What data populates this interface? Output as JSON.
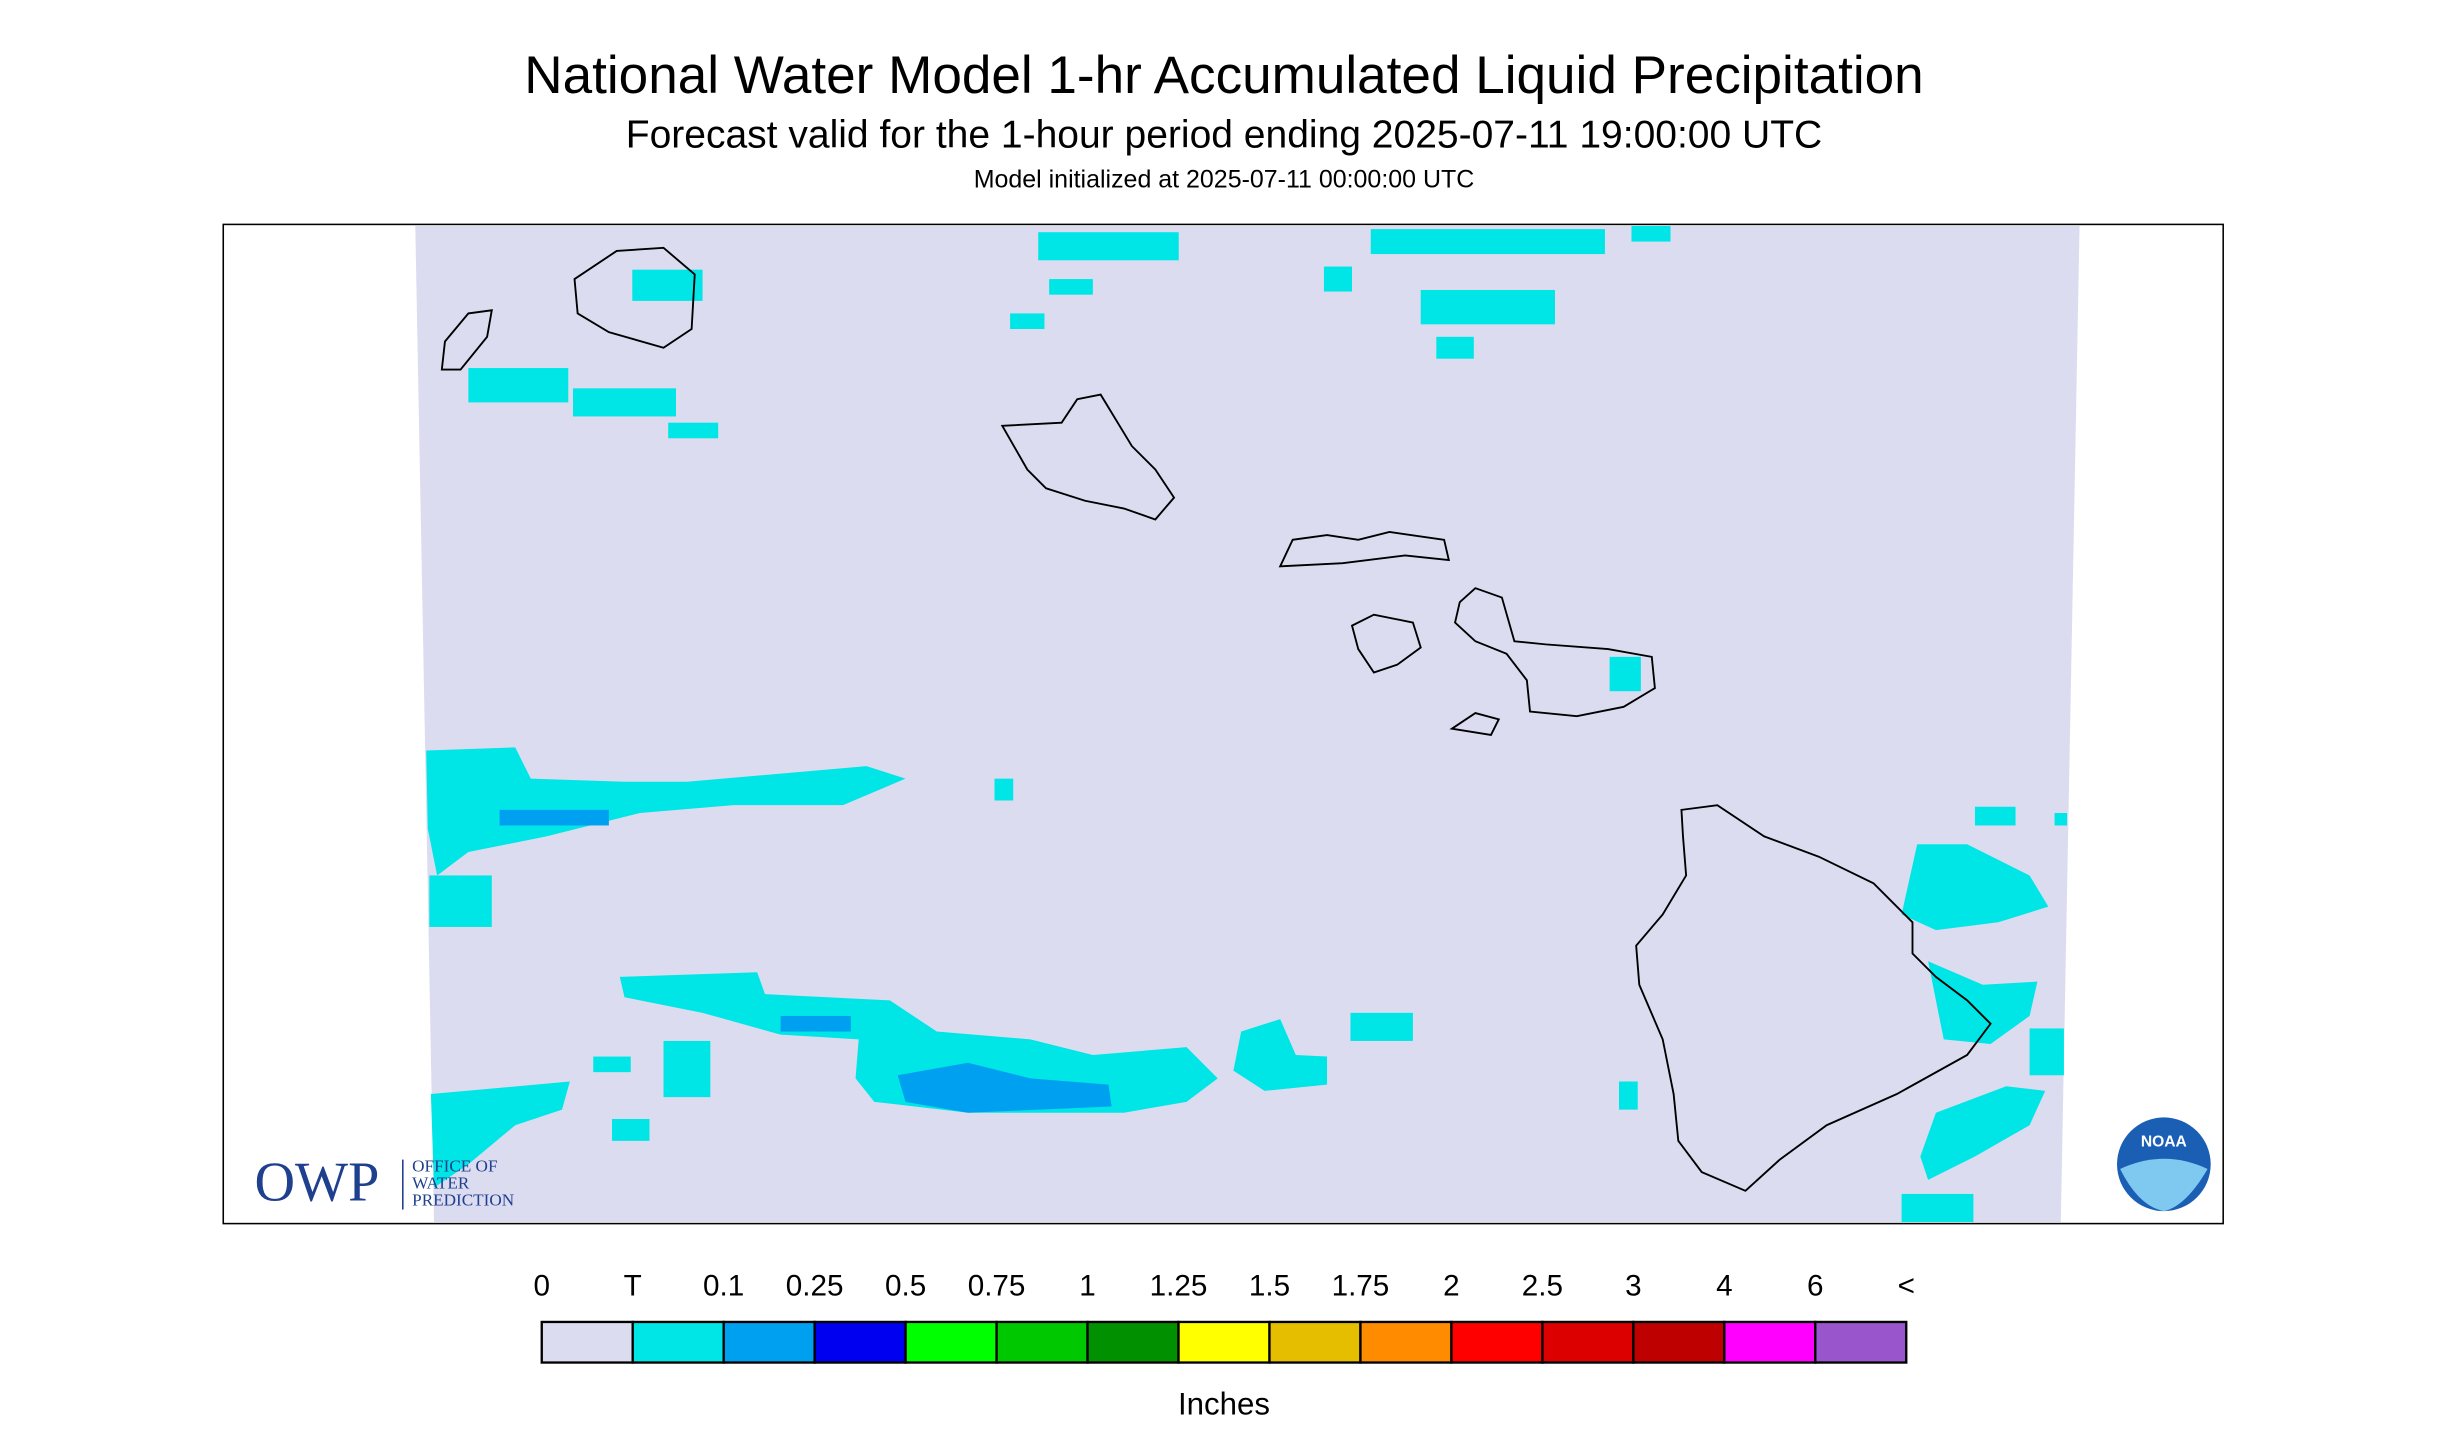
{
  "header": {
    "title": "National Water Model 1-hr Accumulated Liquid Precipitation",
    "subtitle": "Forecast valid for the 1-hour period ending 2025-07-11 19:00:00 UTC",
    "init": "Model initialized at 2025-07-11 00:00:00 UTC"
  },
  "logos": {
    "owp": "OWP",
    "owp_lines": [
      "OFFICE OF",
      "WATER",
      "PREDICTION"
    ],
    "noaa": "NOAA"
  },
  "legend": {
    "unit": "Inches",
    "labels": [
      "0",
      "T",
      "0.1",
      "0.25",
      "0.5",
      "0.75",
      "1",
      "1.25",
      "1.5",
      "1.75",
      "2",
      "2.5",
      "3",
      "4",
      "6",
      "<"
    ],
    "colors": [
      "#dcdcf0",
      "#00e6e6",
      "#00a0f0",
      "#0000f0",
      "#00ff00",
      "#00c800",
      "#009000",
      "#ffff00",
      "#e6be00",
      "#ff8c00",
      "#ff0000",
      "#dc0000",
      "#be0000",
      "#ff00ff",
      "#9955cc"
    ]
  }
}
